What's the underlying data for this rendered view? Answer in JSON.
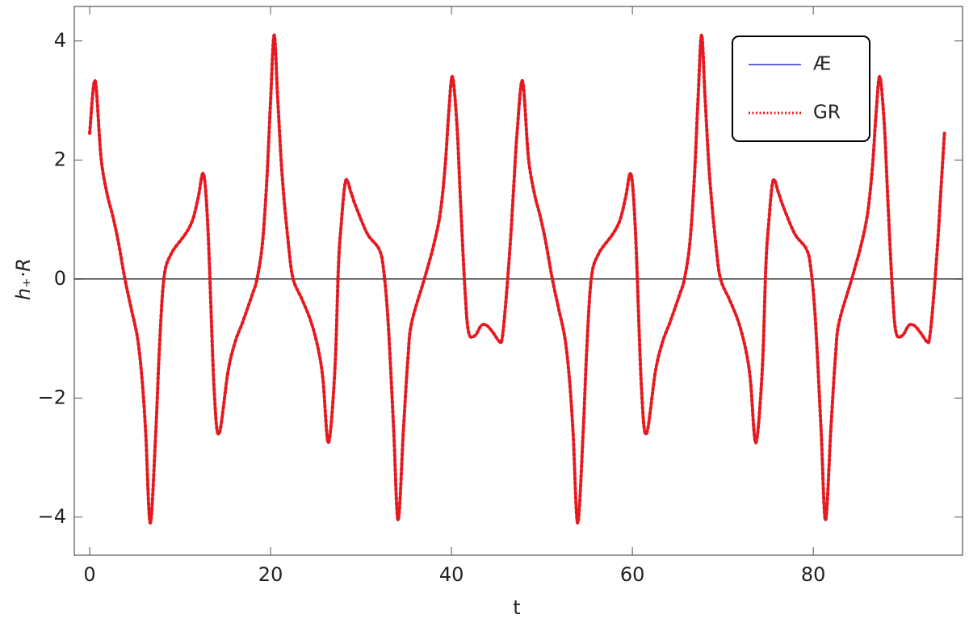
{
  "chart_data": {
    "type": "line",
    "xlabel": "t",
    "ylabel": "h₊·R",
    "x": [
      0,
      0.6,
      1.25,
      1.9,
      2.6,
      3.2,
      3.9,
      4.6,
      5.3,
      5.8,
      6.2,
      6.7,
      7.3,
      7.7,
      8.2,
      9.0,
      10.6,
      11.4,
      12.0,
      12.6,
      13.1,
      13.75,
      14.3,
      15.3,
      16.1,
      16.9,
      18.0,
      18.5,
      19.1,
      19.6,
      20.0,
      20.4,
      20.8,
      21.3,
      22.0,
      22.5,
      23.5,
      24.5,
      25.3,
      25.8,
      26.4,
      27.1,
      27.5,
      27.8,
      28.3,
      28.9,
      29.4,
      30.7,
      32.0,
      32.5,
      33.0,
      33.6,
      34.1,
      34.7,
      35.2,
      35.6,
      37.0,
      38.0,
      38.75,
      39.3,
      39.7,
      40.1,
      40.6,
      41.0,
      41.5,
      41.9,
      42.6,
      43.3,
      43.9,
      44.6,
      45.3,
      45.6,
      46.0,
      46.5,
      46.9,
      47.25,
      47.85,
      48.5,
      49.15,
      49.85,
      50.45,
      51.15,
      51.85,
      52.55,
      53.05,
      53.45,
      53.95,
      54.55,
      54.95,
      55.45,
      56.25,
      57.85,
      58.65,
      59.25,
      59.85,
      60.35,
      61.0,
      61.55,
      62.55,
      63.35,
      64.15,
      65.25,
      65.75,
      66.35,
      66.85,
      67.25,
      67.65,
      68.05,
      68.55,
      69.25,
      69.75,
      70.75,
      71.75,
      72.55,
      73.05,
      73.65,
      74.35,
      74.75,
      75.05,
      75.55,
      76.15,
      76.65,
      77.95,
      79.25,
      79.75,
      80.25,
      80.85,
      81.35,
      81.95,
      82.45,
      82.85,
      84.25,
      85.25,
      86.0,
      86.55,
      86.95,
      87.35,
      87.85,
      88.25,
      88.75,
      89.15,
      89.85,
      90.55,
      91.15,
      91.85,
      92.55,
      92.85,
      93.25,
      93.75,
      94.15,
      94.5
    ],
    "series": [
      {
        "name": "Æ",
        "color": "#2b2bd6",
        "dash": false,
        "values": [
          2.45,
          3.33,
          2.05,
          1.45,
          1.03,
          0.6,
          0,
          -0.5,
          -1.0,
          -1.7,
          -2.6,
          -4.1,
          -2.6,
          -1.2,
          0,
          0.42,
          0.76,
          1.0,
          1.37,
          1.76,
          0.76,
          -1.82,
          -2.6,
          -1.55,
          -1.05,
          -0.73,
          -0.25,
          0,
          0.6,
          1.7,
          3.0,
          4.1,
          3.0,
          1.7,
          0.55,
          0,
          -0.35,
          -0.73,
          -1.2,
          -1.7,
          -2.75,
          -1.55,
          0.2,
          0.9,
          1.65,
          1.45,
          1.23,
          0.76,
          0.5,
          0.15,
          -0.73,
          -2.5,
          -4.05,
          -2.5,
          -1.3,
          -0.73,
          0,
          0.55,
          1.1,
          1.9,
          2.8,
          3.4,
          2.6,
          1.3,
          -0.2,
          -0.9,
          -0.95,
          -0.78,
          -0.78,
          -0.9,
          -1.05,
          -1.0,
          -0.4,
          0.6,
          1.6,
          2.45,
          3.33,
          2.05,
          1.45,
          1.03,
          0.6,
          0,
          -0.5,
          -1.0,
          -1.7,
          -2.6,
          -4.1,
          -2.6,
          -1.2,
          0,
          0.42,
          0.76,
          1.0,
          1.37,
          1.76,
          0.76,
          -1.82,
          -2.6,
          -1.55,
          -1.05,
          -0.73,
          -0.25,
          0,
          0.6,
          1.7,
          3.0,
          4.1,
          3.0,
          1.7,
          0.55,
          0,
          -0.35,
          -0.73,
          -1.2,
          -1.7,
          -2.75,
          -1.55,
          0.2,
          0.9,
          1.65,
          1.45,
          1.23,
          0.76,
          0.5,
          0.15,
          -0.73,
          -2.5,
          -4.05,
          -2.5,
          -1.3,
          -0.73,
          0,
          0.55,
          1.1,
          1.9,
          2.8,
          3.4,
          2.6,
          1.3,
          -0.2,
          -0.9,
          -0.95,
          -0.78,
          -0.78,
          -0.9,
          -1.05,
          -1.0,
          -0.4,
          0.6,
          1.6,
          2.45
        ]
      },
      {
        "name": "GR",
        "color": "#e8191c",
        "dash": true,
        "values": [
          2.45,
          3.33,
          2.05,
          1.45,
          1.03,
          0.6,
          0,
          -0.5,
          -1.0,
          -1.7,
          -2.6,
          -4.1,
          -2.6,
          -1.2,
          0,
          0.42,
          0.76,
          1.0,
          1.37,
          1.76,
          0.76,
          -1.82,
          -2.6,
          -1.55,
          -1.05,
          -0.73,
          -0.25,
          0,
          0.6,
          1.7,
          3.0,
          4.1,
          3.0,
          1.7,
          0.55,
          0,
          -0.35,
          -0.73,
          -1.2,
          -1.7,
          -2.75,
          -1.55,
          0.2,
          0.9,
          1.65,
          1.45,
          1.23,
          0.76,
          0.5,
          0.15,
          -0.73,
          -2.5,
          -4.05,
          -2.5,
          -1.3,
          -0.73,
          0,
          0.55,
          1.1,
          1.9,
          2.8,
          3.4,
          2.6,
          1.3,
          -0.2,
          -0.9,
          -0.95,
          -0.78,
          -0.78,
          -0.9,
          -1.05,
          -1.0,
          -0.4,
          0.6,
          1.6,
          2.45,
          3.33,
          2.05,
          1.45,
          1.03,
          0.6,
          0,
          -0.5,
          -1.0,
          -1.7,
          -2.6,
          -4.1,
          -2.6,
          -1.2,
          0,
          0.42,
          0.76,
          1.0,
          1.37,
          1.76,
          0.76,
          -1.82,
          -2.6,
          -1.55,
          -1.05,
          -0.73,
          -0.25,
          0,
          0.6,
          1.7,
          3.0,
          4.1,
          3.0,
          1.7,
          0.55,
          0,
          -0.35,
          -0.73,
          -1.2,
          -1.7,
          -2.75,
          -1.55,
          0.2,
          0.9,
          1.65,
          1.45,
          1.23,
          0.76,
          0.5,
          0.15,
          -0.73,
          -2.5,
          -4.05,
          -2.5,
          -1.3,
          -0.73,
          0,
          0.55,
          1.1,
          1.9,
          2.8,
          3.4,
          2.6,
          1.3,
          -0.2,
          -0.9,
          -0.95,
          -0.78,
          -0.78,
          -0.9,
          -1.05,
          -1.0,
          -0.4,
          0.6,
          1.6,
          2.45
        ]
      }
    ],
    "xlim": [
      -1.7,
      96.5
    ],
    "xticks": [
      0,
      20,
      40,
      60,
      80
    ],
    "ylim": [
      -4.64,
      4.58
    ],
    "yticks": [
      {
        "value": -4,
        "label": "−4"
      },
      {
        "value": -2,
        "label": "−2"
      },
      0,
      2,
      4
    ],
    "zero_line": true,
    "legend": "upper right"
  }
}
